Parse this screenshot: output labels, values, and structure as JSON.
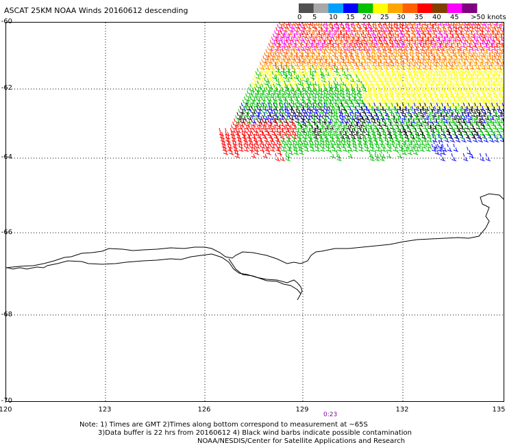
{
  "title": "ASCAT 25KM NOAA Winds 20160612 descending",
  "colorbar": {
    "labels": [
      "0",
      "5",
      "10",
      "15",
      "20",
      "25",
      "30",
      "35",
      "40",
      "45",
      ">50 knots"
    ],
    "colors": [
      "#505050",
      "#a8a8a8",
      "#00a0ff",
      "#0000ff",
      "#00c000",
      "#ffff00",
      "#ffa500",
      "#ff6000",
      "#ff0000",
      "#804000",
      "#ff00ff",
      "#800080"
    ]
  },
  "axes": {
    "lat_labels": [
      "-60",
      "-62",
      "-64",
      "-66",
      "-68",
      "-70"
    ],
    "lon_labels": [
      "120",
      "123",
      "126",
      "129",
      "132",
      "135"
    ]
  },
  "time_label": "0:23",
  "notes": [
    "Note: 1) Times are GMT 2)Times along bottom correspond to measurement at ~65S",
    "3)Data buffer is 22 hrs from 20160612 4) Black wind barbs indicate possible contamination",
    "NOAA/NESDIS/Center for Satellite Applications and Research"
  ]
}
